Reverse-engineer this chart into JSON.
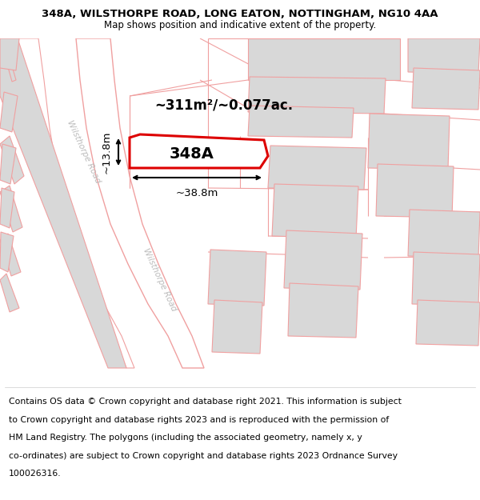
{
  "title_line1": "348A, WILSTHORPE ROAD, LONG EATON, NOTTINGHAM, NG10 4AA",
  "title_line2": "Map shows position and indicative extent of the property.",
  "footer_lines": [
    "Contains OS data © Crown copyright and database right 2021. This information is subject",
    "to Crown copyright and database rights 2023 and is reproduced with the permission of",
    "HM Land Registry. The polygons (including the associated geometry, namely x, y",
    "co-ordinates) are subject to Crown copyright and database rights 2023 Ordnance Survey",
    "100026316."
  ],
  "map_bg": "#ffffff",
  "road_fill": "#ffffff",
  "road_stroke": "#f0a0a0",
  "plot_fill": "#d8d8d8",
  "plot_stroke": "#f0a0a0",
  "highlight_fill": "#ffffff",
  "highlight_stroke": "#dd0000",
  "area_text": "~311m²/~0.077ac.",
  "label_348A": "348A",
  "dim_width": "~38.8m",
  "dim_height": "~13.8m",
  "road_label": "Wilsthorpe Road",
  "road_label_color": "#bbbbbb",
  "road_label_rotation": -65
}
